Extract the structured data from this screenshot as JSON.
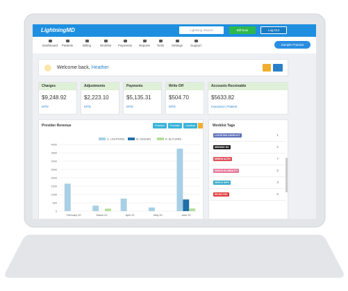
{
  "header": {
    "logo": "LightningMD",
    "search_placeholder": "Lightning Search",
    "bill_now": "Bill Now",
    "log_out": "Log Out"
  },
  "nav": {
    "items": [
      "Dashboard",
      "Patients",
      "Billing",
      "Worklist",
      "Payments",
      "Reports",
      "Tools",
      "Settings",
      "Support"
    ],
    "practice": "Sample Practice"
  },
  "welcome": {
    "greeting": "Welcome back,",
    "name": "Heather"
  },
  "cards": [
    {
      "title": "Charges",
      "value": "$9,248.92",
      "sub": "MTD"
    },
    {
      "title": "Adjustments",
      "value": "$2,223.10",
      "sub": "MTD"
    },
    {
      "title": "Payments",
      "value": "$5,135.31",
      "sub": "MTD"
    },
    {
      "title": "Write Off",
      "value": "$504.70",
      "sub": "MTD"
    },
    {
      "title": "Accounts Receivable",
      "value": "$5633.82",
      "sub": "Insurance | Patient"
    }
  ],
  "chart_buttons": [
    "Practice",
    "Provider",
    "Location"
  ],
  "chart_data": {
    "type": "bar",
    "title": "Provider Revenue",
    "categories": [
      "February 20",
      "March 20",
      "April 20",
      "May 20",
      "June 20"
    ],
    "series": [
      {
        "name": "D. LIGHTNING",
        "color": "#a8cfe6",
        "values": [
          1650,
          330,
          750,
          220,
          3750
        ]
      },
      {
        "name": "M. DASHER",
        "color": "#1f6fa8",
        "values": [
          0,
          0,
          0,
          0,
          700
        ]
      },
      {
        "name": "R. BLITZARD",
        "color": "#b5df9b",
        "values": [
          0,
          150,
          0,
          0,
          160
        ]
      }
    ],
    "ylim": [
      0,
      4000
    ],
    "yticks": [
      0,
      500,
      1000,
      1500,
      2000,
      2500,
      3000,
      3500,
      4000
    ],
    "grid": true
  },
  "worklist": {
    "title": "Worklist Tags",
    "tags": [
      {
        "label": "LOCATION CONFLICT",
        "count": "1",
        "color": "#5b6fb8"
      },
      {
        "label": "MISSING DX",
        "count": "2",
        "color": "#222222"
      },
      {
        "label": "NEEDS AUTH",
        "count": "7",
        "color": "#e0505a"
      },
      {
        "label": "NEEDS ELIGIBILITY",
        "count": "2",
        "color": "#e8769a"
      },
      {
        "label": "NEEDS INFO",
        "count": "3",
        "color": "#2fa7c7"
      },
      {
        "label": "REJECTED",
        "count": "0",
        "color": "#e03c3c"
      }
    ]
  }
}
